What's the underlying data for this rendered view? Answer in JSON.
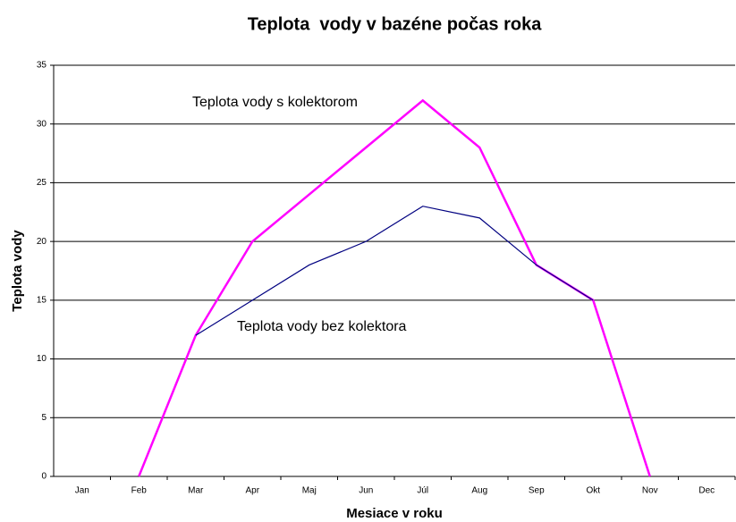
{
  "chart_data": {
    "type": "line",
    "title": "Teplota  vody v bazéne počas roka",
    "x_label": "Mesiace v roku",
    "y_label": "Teplota vody",
    "categories": [
      "Jan",
      "Feb",
      "Mar",
      "Apr",
      "Maj",
      "Jun",
      "Júl",
      "Aug",
      "Sep",
      "Okt",
      "Nov",
      "Dec"
    ],
    "series": [
      {
        "name": "Teplota vody s kolektorom",
        "color": "#ff00ff",
        "values": [
          null,
          0,
          12,
          20,
          24,
          28,
          32,
          28,
          18,
          15,
          0,
          null
        ]
      },
      {
        "name": "Teplota vody bez kolektora",
        "color": "#000080",
        "values": [
          null,
          null,
          12,
          15,
          18,
          20,
          23,
          22,
          18,
          15,
          null,
          null
        ]
      }
    ],
    "ylim": [
      0,
      35
    ],
    "yticks": [
      0,
      5,
      10,
      15,
      20,
      25,
      30,
      35
    ],
    "grid": true
  }
}
